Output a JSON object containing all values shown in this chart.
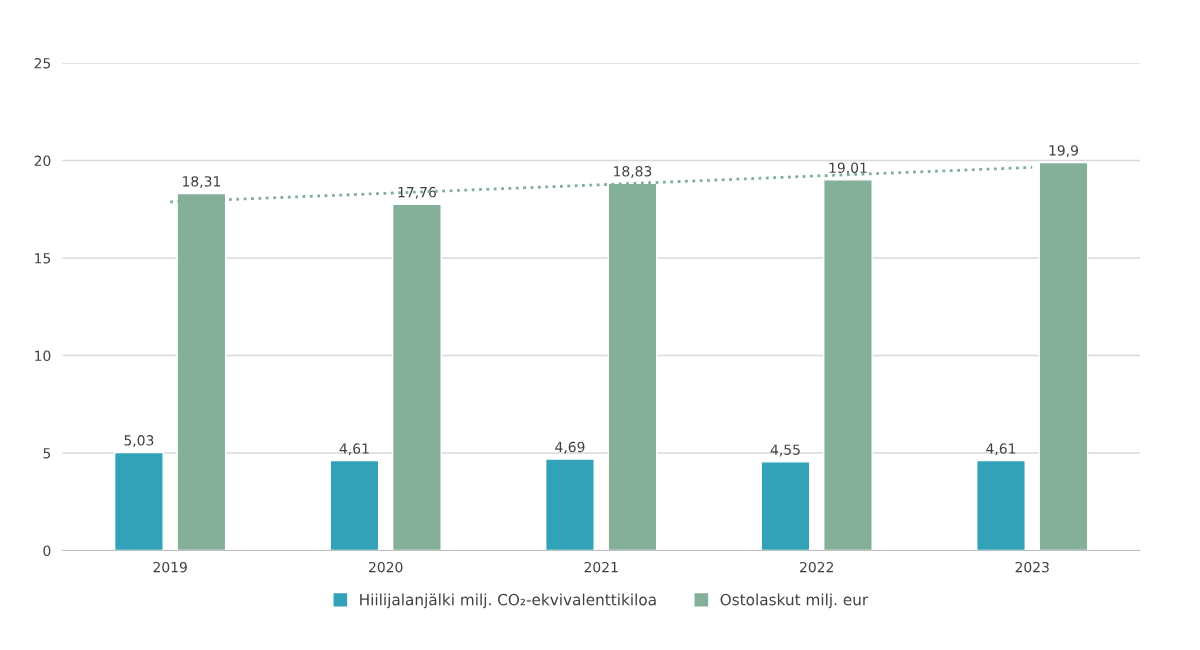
{
  "chart_data": {
    "type": "bar",
    "categories": [
      "2019",
      "2020",
      "2021",
      "2022",
      "2023"
    ],
    "series": [
      {
        "name": "Hiilijalanjälki milj. CO₂-ekvivalenttikiloa",
        "color": "#31a2b8",
        "values": [
          5.03,
          4.61,
          4.69,
          4.55,
          4.61
        ],
        "value_labels": [
          "5,03",
          "4,61",
          "4,69",
          "4,55",
          "4,61"
        ]
      },
      {
        "name": "Ostolaskut milj. eur",
        "color": "#84b09a",
        "values": [
          18.31,
          17.76,
          18.83,
          19.01,
          19.9
        ],
        "value_labels": [
          "18,31",
          "17,76",
          "18,83",
          "19,01",
          "19,9"
        ]
      },
      {
        "type": "line",
        "color": "#7fae96",
        "line_style": "dotted",
        "values": [
          17.88,
          18.32,
          18.76,
          19.21,
          19.65
        ]
      }
    ],
    "ylim": [
      0,
      25
    ],
    "yticks": [
      0,
      5,
      10,
      15,
      20,
      25
    ],
    "grid": "y",
    "legend": "bottom"
  }
}
